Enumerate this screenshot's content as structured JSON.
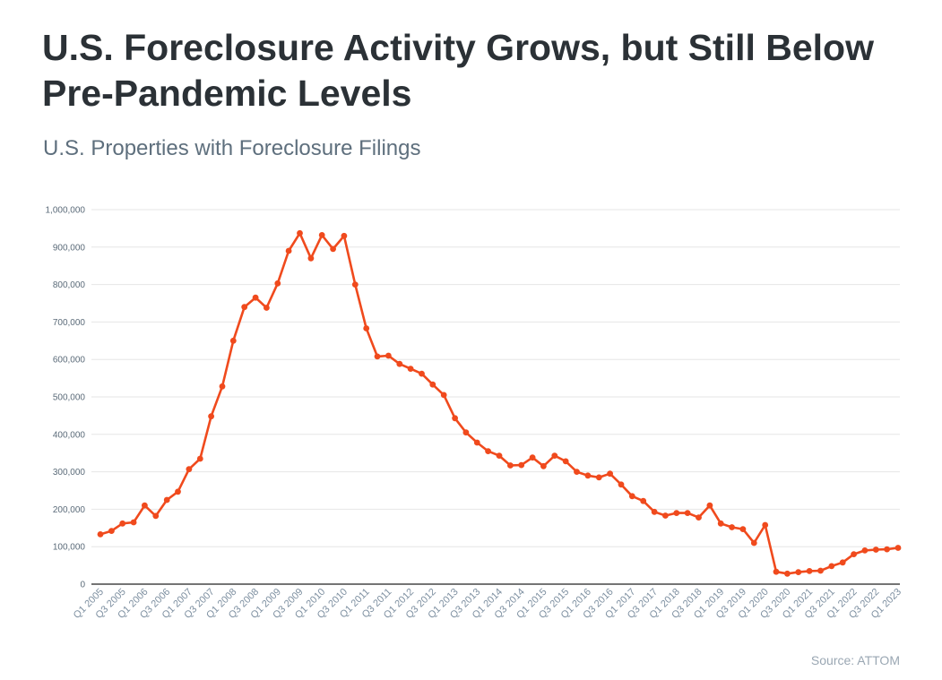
{
  "header": {
    "title": "U.S. Foreclosure Activity Grows, but Still Below Pre-Pandemic Levels",
    "subtitle": "U.S. Properties with Foreclosure Filings"
  },
  "footer": {
    "source": "Source: ATTOM"
  },
  "colors": {
    "line": "#f04a1d",
    "grid": "#e6e6e6",
    "axis": "#222222"
  },
  "chart_data": {
    "type": "line",
    "title": "U.S. Foreclosure Activity Grows, but Still Below Pre-Pandemic Levels",
    "subtitle": "U.S. Properties with Foreclosure Filings",
    "xlabel": "",
    "ylabel": "",
    "ylim": [
      0,
      1000000
    ],
    "grid": true,
    "legend": "none",
    "yticks": [
      0,
      100000,
      200000,
      300000,
      400000,
      500000,
      600000,
      700000,
      800000,
      900000,
      1000000
    ],
    "ytick_labels": [
      "0",
      "100,000",
      "200,000",
      "300,000",
      "400,000",
      "500,000",
      "600,000",
      "700,000",
      "800,000",
      "900,000",
      "1,000,000"
    ],
    "x": [
      "Q1 2005",
      "Q2 2005",
      "Q3 2005",
      "Q4 2005",
      "Q1 2006",
      "Q2 2006",
      "Q3 2006",
      "Q4 2006",
      "Q1 2007",
      "Q2 2007",
      "Q3 2007",
      "Q4 2007",
      "Q1 2008",
      "Q2 2008",
      "Q3 2008",
      "Q4 2008",
      "Q1 2009",
      "Q2 2009",
      "Q3 2009",
      "Q4 2009",
      "Q1 2010",
      "Q2 2010",
      "Q3 2010",
      "Q4 2010",
      "Q1 2011",
      "Q2 2011",
      "Q3 2011",
      "Q4 2011",
      "Q1 2012",
      "Q2 2012",
      "Q3 2012",
      "Q4 2012",
      "Q1 2013",
      "Q2 2013",
      "Q3 2013",
      "Q4 2013",
      "Q1 2014",
      "Q2 2014",
      "Q3 2014",
      "Q4 2014",
      "Q1 2015",
      "Q2 2015",
      "Q3 2015",
      "Q4 2015",
      "Q1 2016",
      "Q2 2016",
      "Q3 2016",
      "Q4 2016",
      "Q1 2017",
      "Q2 2017",
      "Q3 2017",
      "Q4 2017",
      "Q1 2018",
      "Q2 2018",
      "Q3 2018",
      "Q4 2018",
      "Q1 2019",
      "Q2 2019",
      "Q3 2019",
      "Q4 2019",
      "Q1 2020",
      "Q2 2020",
      "Q3 2020",
      "Q4 2020",
      "Q1 2021",
      "Q2 2021",
      "Q3 2021",
      "Q4 2021",
      "Q1 2022",
      "Q2 2022",
      "Q3 2022",
      "Q4 2022",
      "Q1 2023"
    ],
    "xtick_labels": [
      "Q1 2005",
      "Q3 2005",
      "Q1 2006",
      "Q3 2006",
      "Q1 2007",
      "Q3 2007",
      "Q1 2008",
      "Q3 2008",
      "Q1 2009",
      "Q3 2009",
      "Q1 2010",
      "Q3 2010",
      "Q1 2011",
      "Q3 2011",
      "Q1 2012",
      "Q3 2012",
      "Q1 2013",
      "Q3 2013",
      "Q1 2014",
      "Q3 2014",
      "Q1 2015",
      "Q3 2015",
      "Q1 2016",
      "Q3 2016",
      "Q1 2017",
      "Q3 2017",
      "Q1 2018",
      "Q3 2018",
      "Q1 2019",
      "Q3 2019",
      "Q1 2020",
      "Q3 2020",
      "Q1 2021",
      "Q3 2021",
      "Q1 2022",
      "Q3 2022",
      "Q1 2023"
    ],
    "series": [
      {
        "values": [
          133000,
          142000,
          162000,
          165000,
          210000,
          182000,
          225000,
          247000,
          307000,
          335000,
          448000,
          528000,
          650000,
          740000,
          765000,
          738000,
          803000,
          890000,
          937000,
          870000,
          932000,
          895000,
          930000,
          800000,
          683000,
          608000,
          610000,
          588000,
          575000,
          562000,
          533000,
          505000,
          443000,
          405000,
          378000,
          355000,
          343000,
          317000,
          318000,
          338000,
          315000,
          343000,
          328000,
          300000,
          290000,
          285000,
          295000,
          266000,
          235000,
          222000,
          193000,
          183000,
          190000,
          190000,
          178000,
          210000,
          162000,
          152000,
          147000,
          110000,
          158000,
          33000,
          28000,
          32000,
          35000,
          36000,
          48000,
          58000,
          80000,
          90000,
          92000,
          93000,
          97000
        ]
      }
    ]
  }
}
